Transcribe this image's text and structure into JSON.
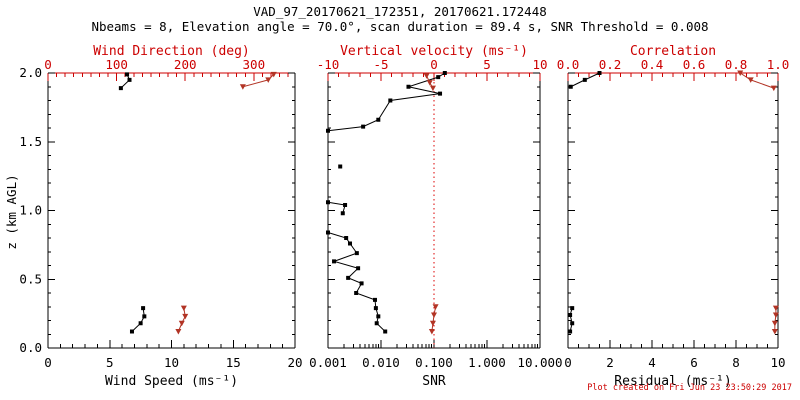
{
  "chart_data": {
    "type": "scatter",
    "title": "VAD_97_20170621_172351, 20170621.172448",
    "subtitle": "Nbeams = 8, Elevation angle = 70.0°, scan duration = 89.4 s, SNR Threshold = 0.008",
    "footer": "Plot created on Fri Jun 23 23:50:29 2017",
    "ylabel": "z (km AGL)",
    "colors": {
      "black": "#000000",
      "axis_red": "#cc0000",
      "marker_red": "#b23425"
    },
    "yaxis": {
      "min": 0,
      "max": 2,
      "minor_step": 0.1,
      "ticks": [
        {
          "v": 0.0,
          "t": "0.0"
        },
        {
          "v": 0.5,
          "t": "0.5"
        },
        {
          "v": 1.0,
          "t": "1.0"
        },
        {
          "v": 1.5,
          "t": "1.5"
        },
        {
          "v": 2.0,
          "t": "2.0"
        }
      ]
    },
    "panels": [
      {
        "id": "wind",
        "bottom": {
          "label": "Wind Speed (ms⁻¹)",
          "scale": "linear",
          "min": 0,
          "max": 20,
          "minor_step": 1,
          "color": "#000000",
          "ticks": [
            {
              "v": 0,
              "t": "0"
            },
            {
              "v": 5,
              "t": "5"
            },
            {
              "v": 10,
              "t": "10"
            },
            {
              "v": 15,
              "t": "15"
            },
            {
              "v": 20,
              "t": "20"
            }
          ]
        },
        "top": {
          "label": "Wind Direction (deg)",
          "scale": "linear",
          "min": 0,
          "max": 360,
          "minor_step": 12.5,
          "color": "#cc0000",
          "ticks": [
            {
              "v": 0,
              "t": "0"
            },
            {
              "v": 100,
              "t": "100"
            },
            {
              "v": 200,
              "t": "200"
            },
            {
              "v": 300,
              "t": "300"
            }
          ]
        },
        "series": [
          {
            "name": "wind-speed",
            "axis": "bottom",
            "color": "#000000",
            "marker": "square",
            "segments": [
              [
                [
                  6.4,
                  1.99
                ],
                [
                  6.6,
                  1.95
                ],
                [
                  5.9,
                  1.89
                ]
              ],
              [
                [
                  7.7,
                  0.29
                ],
                [
                  7.8,
                  0.23
                ],
                [
                  7.5,
                  0.18
                ],
                [
                  6.8,
                  0.12
                ]
              ]
            ]
          },
          {
            "name": "wind-direction",
            "axis": "top",
            "color": "#b23425",
            "marker": "triangle",
            "segments": [
              [
                [
                  329,
                  1.99
                ],
                [
                  321,
                  1.95
                ],
                [
                  284,
                  1.9
                ]
              ],
              [
                [
                  198,
                  0.29
                ],
                [
                  200,
                  0.23
                ],
                [
                  195,
                  0.18
                ],
                [
                  190,
                  0.12
                ]
              ]
            ]
          }
        ]
      },
      {
        "id": "snr",
        "bottom": {
          "label": "SNR",
          "scale": "log",
          "min": 0.001,
          "max": 10,
          "color": "#000000",
          "ticks": [
            {
              "v": 0.001,
              "t": "0.001"
            },
            {
              "v": 0.01,
              "t": "0.010"
            },
            {
              "v": 0.1,
              "t": "0.100"
            },
            {
              "v": 1,
              "t": "1.000"
            },
            {
              "v": 10,
              "t": "10.000"
            }
          ]
        },
        "top": {
          "label": "Vertical velocity (ms⁻¹)",
          "scale": "linear",
          "min": -10,
          "max": 10,
          "minor_step": 1,
          "color": "#cc0000",
          "ticks": [
            {
              "v": -10,
              "t": "-10"
            },
            {
              "v": -5,
              "t": "-5"
            },
            {
              "v": 0,
              "t": "0"
            },
            {
              "v": 5,
              "t": "5"
            },
            {
              "v": 10,
              "t": "10"
            }
          ]
        },
        "refline": {
          "axis": "top",
          "value": 0,
          "color": "#dd0000",
          "style": "dotted",
          "name": "zero-velocity-refline"
        },
        "series": [
          {
            "name": "snr-profile",
            "axis": "bottom",
            "color": "#000000",
            "marker": "square",
            "segments": [
              [
                [
                  0.16,
                  2.0
                ],
                [
                  0.12,
                  1.97
                ],
                [
                  0.033,
                  1.9
                ],
                [
                  0.13,
                  1.85
                ],
                [
                  0.015,
                  1.8
                ],
                [
                  0.0089,
                  1.66
                ],
                [
                  0.0046,
                  1.61
                ],
                [
                  0.001,
                  1.58
                ]
              ],
              [
                [
                  0.0017,
                  1.32
                ]
              ],
              [
                [
                  0.001,
                  1.06
                ],
                [
                  0.0021,
                  1.04
                ],
                [
                  0.0019,
                  0.98
                ]
              ],
              [
                [
                  0.001,
                  0.84
                ],
                [
                  0.0022,
                  0.8
                ],
                [
                  0.0026,
                  0.76
                ],
                [
                  0.0035,
                  0.69
                ],
                [
                  0.0013,
                  0.63
                ],
                [
                  0.0037,
                  0.58
                ],
                [
                  0.0024,
                  0.51
                ],
                [
                  0.0043,
                  0.47
                ],
                [
                  0.0034,
                  0.4
                ],
                [
                  0.0077,
                  0.35
                ],
                [
                  0.008,
                  0.29
                ],
                [
                  0.0089,
                  0.23
                ],
                [
                  0.0083,
                  0.18
                ],
                [
                  0.012,
                  0.12
                ]
              ]
            ]
          },
          {
            "name": "vertical-velocity",
            "axis": "top",
            "color": "#b23425",
            "marker": "triangle",
            "segments": [
              [
                [
                  -0.7,
                  1.98
                ],
                [
                  -0.4,
                  1.93
                ],
                [
                  -0.1,
                  1.89
                ]
              ],
              [
                [
                  0.15,
                  0.3
                ],
                [
                  0.0,
                  0.24
                ],
                [
                  -0.1,
                  0.18
                ],
                [
                  -0.2,
                  0.12
                ]
              ]
            ]
          }
        ]
      },
      {
        "id": "residual",
        "bottom": {
          "label": "Residual (ms⁻¹)",
          "scale": "linear",
          "min": 0,
          "max": 10,
          "minor_step": 0.5,
          "color": "#000000",
          "ticks": [
            {
              "v": 0,
              "t": "0"
            },
            {
              "v": 2,
              "t": "2"
            },
            {
              "v": 4,
              "t": "4"
            },
            {
              "v": 6,
              "t": "6"
            },
            {
              "v": 8,
              "t": "8"
            },
            {
              "v": 10,
              "t": "10"
            }
          ]
        },
        "top": {
          "label": "Correlation",
          "scale": "linear",
          "min": 0,
          "max": 1,
          "minor_step": 0.05,
          "color": "#cc0000",
          "ticks": [
            {
              "v": 0.0,
              "t": "0.0"
            },
            {
              "v": 0.2,
              "t": "0.2"
            },
            {
              "v": 0.4,
              "t": "0.4"
            },
            {
              "v": 0.6,
              "t": "0.6"
            },
            {
              "v": 0.8,
              "t": "0.8"
            },
            {
              "v": 1.0,
              "t": "1.0"
            }
          ]
        },
        "series": [
          {
            "name": "residual",
            "axis": "bottom",
            "color": "#000000",
            "marker": "square",
            "segments": [
              [
                [
                  1.5,
                  2.0
                ],
                [
                  0.8,
                  1.95
                ],
                [
                  0.13,
                  1.9
                ]
              ],
              [
                [
                  0.2,
                  0.29
                ],
                [
                  0.1,
                  0.24
                ],
                [
                  0.2,
                  0.18
                ],
                [
                  0.1,
                  0.12
                ]
              ]
            ]
          },
          {
            "name": "correlation",
            "axis": "top",
            "color": "#b23425",
            "marker": "triangle",
            "segments": [
              [
                [
                  0.82,
                  2.0
                ],
                [
                  0.87,
                  1.95
                ],
                [
                  0.98,
                  1.89
                ]
              ],
              [
                [
                  0.99,
                  0.29
                ],
                [
                  0.99,
                  0.24
                ],
                [
                  0.985,
                  0.18
                ],
                [
                  0.985,
                  0.12
                ]
              ]
            ]
          }
        ]
      }
    ]
  }
}
